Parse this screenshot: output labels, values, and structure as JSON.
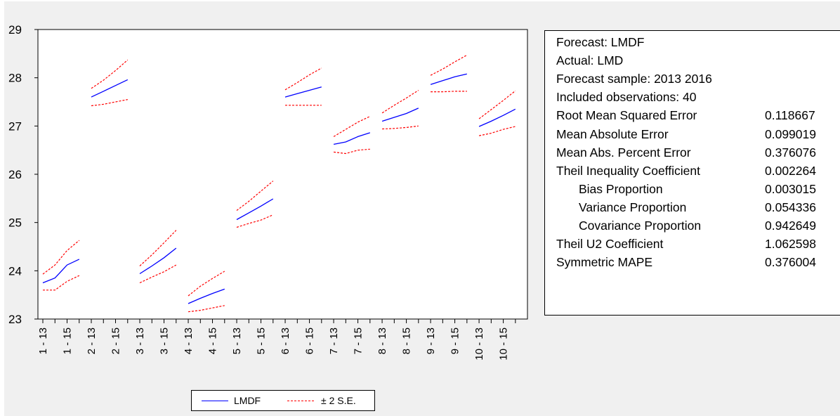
{
  "chart_data": {
    "type": "line",
    "title": "",
    "xlabel": "",
    "ylabel": "",
    "ylim": [
      23,
      29
    ],
    "yticks": [
      23,
      24,
      25,
      26,
      27,
      28,
      29
    ],
    "grid": false,
    "legend_position": "bottom",
    "x_tick_labels": [
      "1 - 13",
      "1 - 15",
      "2 - 13",
      "2 - 15",
      "3 - 13",
      "3 - 15",
      "4 - 13",
      "4 - 15",
      "5 - 13",
      "5 - 15",
      "6 - 13",
      "6 - 15",
      "7 - 13",
      "7 - 15",
      "8 - 13",
      "8 - 15",
      "9 - 13",
      "9 - 15",
      "10 - 13",
      "10 - 15"
    ],
    "groups": [
      {
        "id": 1,
        "x": [
          "2013",
          "2014",
          "2015",
          "2016"
        ],
        "forecast": [
          23.75,
          23.85,
          24.12,
          24.24
        ],
        "upper": [
          23.93,
          24.12,
          24.42,
          24.63
        ],
        "lower": [
          23.6,
          23.6,
          23.78,
          23.9
        ]
      },
      {
        "id": 2,
        "x": [
          "2013",
          "2014",
          "2015",
          "2016"
        ],
        "forecast": [
          27.6,
          27.72,
          27.84,
          27.96
        ],
        "upper": [
          27.78,
          27.95,
          28.15,
          28.37
        ],
        "lower": [
          27.42,
          27.45,
          27.5,
          27.55
        ]
      },
      {
        "id": 3,
        "x": [
          "2013",
          "2014",
          "2015",
          "2016"
        ],
        "forecast": [
          23.94,
          24.1,
          24.27,
          24.47
        ],
        "upper": [
          24.1,
          24.33,
          24.58,
          24.84
        ],
        "lower": [
          23.75,
          23.87,
          23.98,
          24.12
        ]
      },
      {
        "id": 4,
        "x": [
          "2013",
          "2014",
          "2015",
          "2016"
        ],
        "forecast": [
          23.32,
          23.43,
          23.53,
          23.62
        ],
        "upper": [
          23.48,
          23.68,
          23.84,
          23.99
        ],
        "lower": [
          23.15,
          23.18,
          23.23,
          23.28
        ]
      },
      {
        "id": 5,
        "x": [
          "2013",
          "2014",
          "2015",
          "2016"
        ],
        "forecast": [
          25.06,
          25.2,
          25.34,
          25.49
        ],
        "upper": [
          25.25,
          25.44,
          25.65,
          25.86
        ],
        "lower": [
          24.9,
          24.98,
          25.05,
          25.16
        ]
      },
      {
        "id": 6,
        "x": [
          "2013",
          "2014",
          "2015",
          "2016"
        ],
        "forecast": [
          27.6,
          27.67,
          27.74,
          27.81
        ],
        "upper": [
          27.75,
          27.9,
          28.06,
          28.2
        ],
        "lower": [
          27.43,
          27.43,
          27.43,
          27.43
        ]
      },
      {
        "id": 7,
        "x": [
          "2013",
          "2014",
          "2015",
          "2016"
        ],
        "forecast": [
          26.62,
          26.67,
          26.78,
          26.86
        ],
        "upper": [
          26.78,
          26.93,
          27.08,
          27.2
        ],
        "lower": [
          26.46,
          26.43,
          26.5,
          26.52
        ]
      },
      {
        "id": 8,
        "x": [
          "2013",
          "2014",
          "2015",
          "2016"
        ],
        "forecast": [
          27.1,
          27.18,
          27.26,
          27.37
        ],
        "upper": [
          27.27,
          27.43,
          27.58,
          27.74
        ],
        "lower": [
          26.94,
          26.95,
          26.97,
          27.0
        ]
      },
      {
        "id": 9,
        "x": [
          "2013",
          "2014",
          "2015",
          "2016"
        ],
        "forecast": [
          27.86,
          27.94,
          28.02,
          28.08
        ],
        "upper": [
          28.05,
          28.18,
          28.33,
          28.47
        ],
        "lower": [
          27.71,
          27.71,
          27.72,
          27.72
        ]
      },
      {
        "id": 10,
        "x": [
          "2013",
          "2014",
          "2015",
          "2016"
        ],
        "forecast": [
          26.99,
          27.1,
          27.22,
          27.35
        ],
        "upper": [
          27.15,
          27.34,
          27.53,
          27.73
        ],
        "lower": [
          26.8,
          26.85,
          26.93,
          26.99
        ]
      }
    ],
    "series": [
      {
        "name": "LMDF",
        "role": "forecast",
        "color": "#0000ff",
        "style": "solid"
      },
      {
        "name": "± 2 S.E.",
        "role": "bands",
        "color": "#ff0000",
        "style": "dashed"
      }
    ]
  },
  "stats_panel": {
    "header": [
      "Forecast: LMDF",
      "Actual: LMD",
      "Forecast sample: 2013 2016",
      "Included observations: 40"
    ],
    "rows": [
      {
        "label": "Root Mean Squared Error",
        "value": "0.118667",
        "indent": false
      },
      {
        "label": "Mean Absolute Error",
        "value": "0.099019",
        "indent": false
      },
      {
        "label": "Mean Abs. Percent Error",
        "value": "0.376076",
        "indent": false
      },
      {
        "label": "Theil Inequality Coefficient",
        "value": "0.002264",
        "indent": false
      },
      {
        "label": "Bias Proportion",
        "value": "0.003015",
        "indent": true
      },
      {
        "label": "Variance Proportion",
        "value": "0.054336",
        "indent": true
      },
      {
        "label": "Covariance Proportion",
        "value": "0.942649",
        "indent": true
      },
      {
        "label": "Theil U2 Coefficient",
        "value": "1.062598",
        "indent": false
      },
      {
        "label": "Symmetric MAPE",
        "value": "0.376004",
        "indent": false
      }
    ]
  },
  "legend": {
    "forecast_label": "LMDF",
    "band_label": "± 2 S.E."
  },
  "colors": {
    "forecast": "#0000ff",
    "band": "#ff0000",
    "background": "#f0f0f0"
  }
}
